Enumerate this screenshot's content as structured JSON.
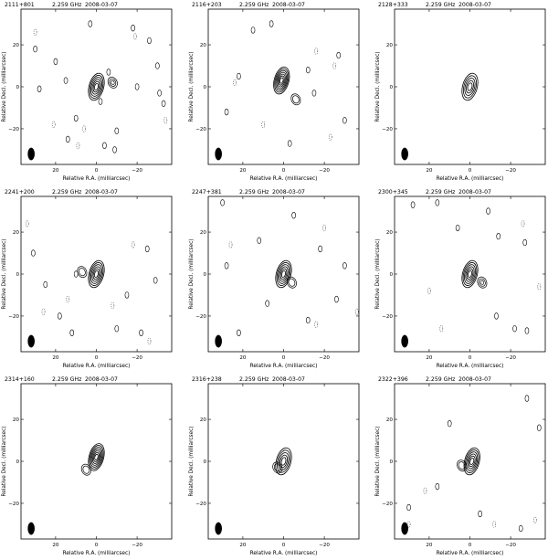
{
  "figure": {
    "x_axis_label": "Relative R.A. (milliarcsec)",
    "y_axis_label": "Relative Decl. (milliarcsec)",
    "x_ticks": [
      20,
      0,
      -20
    ],
    "y_ticks": [
      20,
      0,
      -20
    ],
    "line_color": "#000000"
  },
  "chart_data": [
    {
      "type": "contour",
      "source": "2111+801",
      "frequency": "2.259 GHz",
      "date": "2008-03-07",
      "x_ticks": [
        20,
        0,
        -20
      ],
      "y_ticks": [
        20,
        0,
        -20
      ],
      "xlim": [
        37,
        -37
      ],
      "ylim": [
        -37,
        37
      ],
      "core": {
        "ra": 0,
        "dec": 0,
        "levels": 6
      },
      "extension": {
        "ra": -8,
        "dec": 2,
        "levels": 3
      },
      "noise_solid": [
        [
          -26,
          22
        ],
        [
          -20,
          0
        ],
        [
          -31,
          -3
        ],
        [
          -9,
          -30
        ],
        [
          -10,
          -21
        ],
        [
          -33,
          -8
        ],
        [
          20,
          12
        ],
        [
          10,
          -15
        ],
        [
          14,
          -25
        ],
        [
          -2,
          -7
        ],
        [
          28,
          -1
        ],
        [
          -6,
          7
        ],
        [
          15,
          3
        ],
        [
          -4,
          -28
        ],
        [
          -30,
          10
        ],
        [
          3,
          30
        ],
        [
          -18,
          28
        ],
        [
          30,
          18
        ]
      ],
      "noise_dashed": [
        [
          21,
          -18
        ],
        [
          -19,
          24
        ],
        [
          9,
          -28
        ],
        [
          -34,
          -16
        ],
        [
          6,
          -20
        ],
        [
          30,
          26
        ]
      ],
      "beam": {
        "ra": 32,
        "dec": -32
      }
    },
    {
      "type": "contour",
      "source": "2116+203",
      "frequency": "2.259 GHz",
      "date": "2008-03-07",
      "x_ticks": [
        20,
        0,
        -20
      ],
      "y_ticks": [
        20,
        0,
        -20
      ],
      "xlim": [
        37,
        -37
      ],
      "ylim": [
        -37,
        37
      ],
      "core": {
        "ra": 1,
        "dec": 3,
        "levels": 7
      },
      "extension": {
        "ra": -6,
        "dec": -6,
        "levels": 2
      },
      "noise_solid": [
        [
          15,
          27
        ],
        [
          -3,
          -27
        ],
        [
          28,
          -12
        ],
        [
          22,
          5
        ],
        [
          -12,
          8
        ],
        [
          -15,
          -3
        ],
        [
          6,
          30
        ],
        [
          -27,
          15
        ],
        [
          -30,
          -16
        ]
      ],
      "noise_dashed": [
        [
          24,
          2
        ],
        [
          -23,
          -24
        ],
        [
          -16,
          17
        ],
        [
          10,
          -18
        ],
        [
          -25,
          10
        ]
      ],
      "beam": {
        "ra": 32,
        "dec": -32
      }
    },
    {
      "type": "contour",
      "source": "2128+333",
      "frequency": "2.259 GHz",
      "date": "2008-03-07",
      "x_ticks": [
        20,
        0,
        -20
      ],
      "y_ticks": [
        20,
        0,
        -20
      ],
      "xlim": [
        37,
        -37
      ],
      "ylim": [
        -37,
        37
      ],
      "core": {
        "ra": 0,
        "dec": 0,
        "levels": 5
      },
      "noise_solid": [],
      "noise_dashed": [],
      "beam": {
        "ra": 32,
        "dec": -32
      }
    },
    {
      "type": "contour",
      "source": "2241+200",
      "frequency": "2.259 GHz",
      "date": "2008-03-07",
      "x_ticks": [
        20,
        0,
        -20
      ],
      "y_ticks": [
        20,
        0,
        -20
      ],
      "xlim": [
        37,
        -37
      ],
      "ylim": [
        -37,
        37
      ],
      "core": {
        "ra": 0,
        "dec": 0,
        "levels": 6
      },
      "extension": {
        "ra": 7,
        "dec": 1,
        "levels": 2
      },
      "noise_solid": [
        [
          10,
          0
        ],
        [
          -15,
          -10
        ],
        [
          12,
          -28
        ],
        [
          -25,
          12
        ],
        [
          25,
          -5
        ],
        [
          -10,
          -26
        ],
        [
          31,
          10
        ],
        [
          -22,
          -28
        ],
        [
          18,
          -20
        ],
        [
          -29,
          -3
        ]
      ],
      "noise_dashed": [
        [
          -18,
          14
        ],
        [
          14,
          -12
        ],
        [
          -26,
          -32
        ],
        [
          26,
          -18
        ],
        [
          -8,
          -15
        ],
        [
          34,
          24
        ]
      ],
      "beam": {
        "ra": 32,
        "dec": -32
      }
    },
    {
      "type": "contour",
      "source": "2247+381",
      "frequency": "2.259 GHz",
      "date": "2008-03-07",
      "x_ticks": [
        20,
        0,
        -20
      ],
      "y_ticks": [
        20,
        0,
        -20
      ],
      "xlim": [
        37,
        -37
      ],
      "ylim": [
        -37,
        37
      ],
      "core": {
        "ra": 0,
        "dec": 0,
        "levels": 6
      },
      "extension": {
        "ra": -4,
        "dec": -4,
        "levels": 2
      },
      "noise_solid": [
        [
          12,
          16
        ],
        [
          -18,
          12
        ],
        [
          30,
          34
        ],
        [
          22,
          -28
        ],
        [
          -26,
          -12
        ],
        [
          -12,
          -22
        ],
        [
          8,
          -14
        ],
        [
          -5,
          28
        ],
        [
          -30,
          4
        ],
        [
          28,
          4
        ]
      ],
      "noise_dashed": [
        [
          -16,
          -24
        ],
        [
          26,
          14
        ],
        [
          -20,
          22
        ],
        [
          -36,
          -18
        ]
      ],
      "beam": {
        "ra": 32,
        "dec": -32
      }
    },
    {
      "type": "contour",
      "source": "2300+345",
      "frequency": "2.259 GHz",
      "date": "2008-03-07",
      "x_ticks": [
        20,
        0,
        -20
      ],
      "y_ticks": [
        20,
        0,
        -20
      ],
      "xlim": [
        37,
        -37
      ],
      "ylim": [
        -37,
        37
      ],
      "core": {
        "ra": 0,
        "dec": 0,
        "levels": 6
      },
      "extension": {
        "ra": -6,
        "dec": -4,
        "levels": 3
      },
      "noise_solid": [
        [
          -13,
          -20
        ],
        [
          -22,
          -26
        ],
        [
          -28,
          -27
        ],
        [
          -9,
          30
        ],
        [
          -27,
          15
        ],
        [
          28,
          33
        ],
        [
          16,
          34
        ],
        [
          6,
          22
        ],
        [
          -14,
          18
        ]
      ],
      "noise_dashed": [
        [
          20,
          -8
        ],
        [
          -26,
          24
        ],
        [
          14,
          -26
        ],
        [
          -34,
          -6
        ]
      ],
      "beam": {
        "ra": 32,
        "dec": -32
      }
    },
    {
      "type": "contour",
      "source": "2314+160",
      "frequency": "2.259 GHz",
      "date": "2008-03-07",
      "x_ticks": [
        20,
        0,
        -20
      ],
      "y_ticks": [
        20,
        0,
        -20
      ],
      "xlim": [
        37,
        -37
      ],
      "ylim": [
        -37,
        37
      ],
      "core": {
        "ra": 0,
        "dec": 2,
        "levels": 7
      },
      "extension": {
        "ra": 5,
        "dec": -4,
        "levels": 2
      },
      "noise_solid": [],
      "noise_dashed": [],
      "beam": {
        "ra": 32,
        "dec": -32
      }
    },
    {
      "type": "contour",
      "source": "2316+238",
      "frequency": "2.259 GHz",
      "date": "2008-03-07",
      "x_ticks": [
        20,
        0,
        -20
      ],
      "y_ticks": [
        20,
        0,
        -20
      ],
      "xlim": [
        37,
        -37
      ],
      "ylim": [
        -37,
        37
      ],
      "core": {
        "ra": 0,
        "dec": 0,
        "levels": 5
      },
      "extension": {
        "ra": 3,
        "dec": -3,
        "levels": 2
      },
      "noise_solid": [],
      "noise_dashed": [],
      "beam": {
        "ra": 32,
        "dec": -32
      }
    },
    {
      "type": "contour",
      "source": "2322+396",
      "frequency": "2.259 GHz",
      "date": "2008-03-07",
      "x_ticks": [
        20,
        0,
        -20
      ],
      "y_ticks": [
        20,
        0,
        -20
      ],
      "xlim": [
        37,
        -37
      ],
      "ylim": [
        -37,
        37
      ],
      "core": {
        "ra": -1,
        "dec": 0,
        "levels": 6
      },
      "extension": {
        "ra": 4,
        "dec": -2,
        "levels": 2
      },
      "noise_solid": [
        [
          30,
          -22
        ],
        [
          16,
          -12
        ],
        [
          10,
          18
        ],
        [
          -28,
          30
        ],
        [
          -34,
          16
        ],
        [
          -5,
          -25
        ],
        [
          -25,
          -32
        ]
      ],
      "noise_dashed": [
        [
          22,
          -14
        ],
        [
          -12,
          -30
        ],
        [
          30,
          -30
        ],
        [
          -32,
          -28
        ]
      ],
      "beam": {
        "ra": 32,
        "dec": -32
      }
    }
  ]
}
